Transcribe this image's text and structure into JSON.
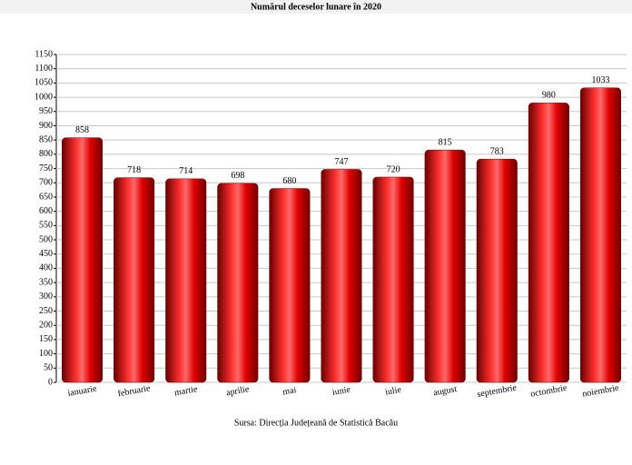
{
  "chart_data": {
    "type": "bar",
    "title": "Numărul deceselor lunare în 2020",
    "categories": [
      "ianuarie",
      "februarie",
      "martie",
      "aprilie",
      "mai",
      "iunie",
      "iulie",
      "august",
      "septembrie",
      "octombrie",
      "noiembrie"
    ],
    "values": [
      858,
      718,
      714,
      698,
      680,
      747,
      720,
      815,
      783,
      980,
      1033
    ],
    "color": "#e00000",
    "ylim": [
      0,
      1150
    ],
    "yticks": [
      0,
      50,
      100,
      150,
      200,
      250,
      300,
      350,
      400,
      450,
      500,
      550,
      600,
      650,
      700,
      750,
      800,
      850,
      900,
      950,
      1000,
      1050,
      1100,
      1150
    ],
    "grid": true,
    "source": "Sursa: Direcția Județeană de Statistică Bacău"
  }
}
